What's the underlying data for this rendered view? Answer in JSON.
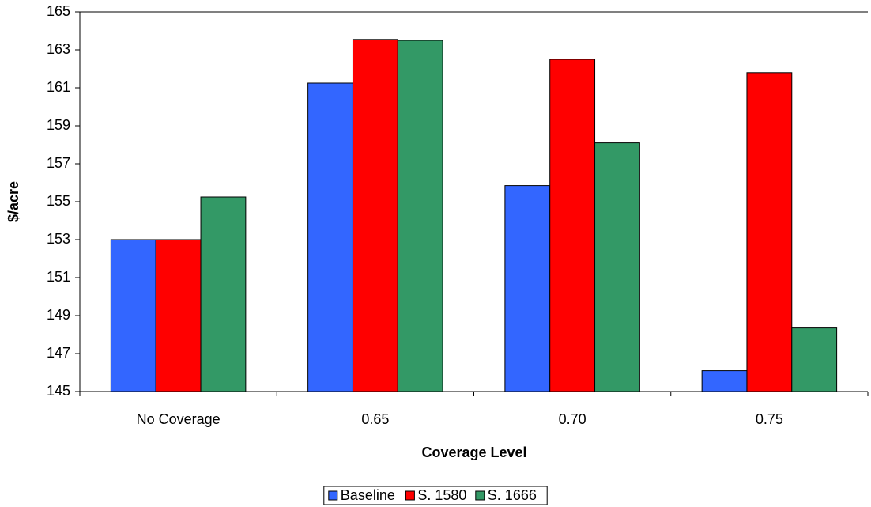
{
  "chart_data": {
    "type": "bar",
    "x_label": "Coverage Level",
    "y_label": "$/acre",
    "categories": [
      "No Coverage",
      "0.65",
      "0.70",
      "0.75"
    ],
    "series": [
      {
        "name": "Baseline",
        "color": "#3366ff",
        "values": [
          153.0,
          161.25,
          155.85,
          146.1
        ]
      },
      {
        "name": "S. 1580",
        "color": "#ff0000",
        "values": [
          153.0,
          163.55,
          162.5,
          161.8
        ]
      },
      {
        "name": "S. 1666",
        "color": "#339966",
        "values": [
          155.25,
          163.5,
          158.1,
          148.35
        ]
      }
    ],
    "ylim": [
      145,
      165
    ],
    "yticks": [
      145,
      147,
      149,
      151,
      153,
      155,
      157,
      159,
      161,
      163,
      165
    ],
    "grid": false,
    "legend": "bottom"
  }
}
